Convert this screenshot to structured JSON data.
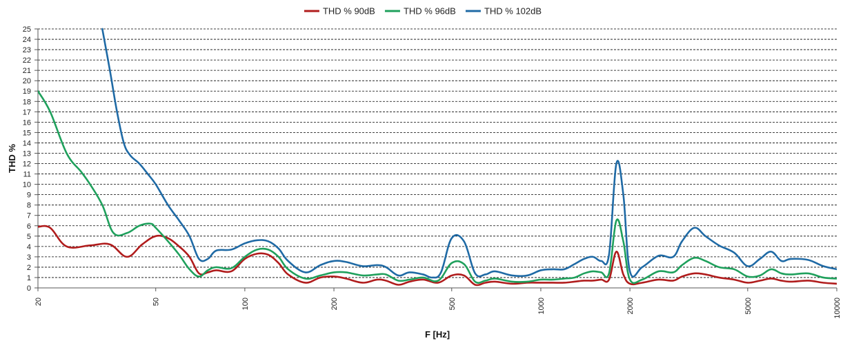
{
  "chart_data": {
    "type": "line",
    "title": "",
    "xlabel": "F [Hz]",
    "ylabel": "THD %",
    "x_scale": "log",
    "xlim": [
      20,
      10000
    ],
    "ylim": [
      0,
      25
    ],
    "x_ticks": [
      20,
      50,
      100,
      200,
      500,
      1000,
      2000,
      5000,
      10000
    ],
    "y_ticks": [
      0,
      1,
      2,
      3,
      4,
      5,
      6,
      7,
      8,
      9,
      10,
      11,
      12,
      13,
      14,
      15,
      16,
      17,
      18,
      19,
      20,
      21,
      22,
      23,
      24,
      25
    ],
    "grid": "horizontal dashed",
    "legend_position": "top-center",
    "series": [
      {
        "name": "THD % 90dB",
        "color": "#b01c1c",
        "x": [
          20,
          22,
          25,
          30,
          35,
          40,
          45,
          50,
          55,
          60,
          65,
          70,
          75,
          80,
          90,
          100,
          110,
          120,
          130,
          140,
          160,
          180,
          200,
          220,
          250,
          280,
          300,
          330,
          360,
          400,
          450,
          500,
          550,
          600,
          650,
          700,
          800,
          900,
          1000,
          1100,
          1200,
          1300,
          1400,
          1500,
          1600,
          1700,
          1800,
          1900,
          2000,
          2200,
          2500,
          2800,
          3000,
          3300,
          3600,
          4000,
          4500,
          5000,
          5500,
          6000,
          6500,
          7000,
          8000,
          9000,
          10000
        ],
        "y": [
          5.9,
          5.8,
          4.0,
          4.1,
          4.2,
          3.0,
          4.2,
          5.0,
          4.8,
          4.0,
          3.0,
          1.4,
          1.5,
          1.7,
          1.6,
          2.8,
          3.3,
          3.2,
          2.4,
          1.3,
          0.5,
          1.0,
          1.1,
          0.9,
          0.5,
          0.8,
          0.7,
          0.3,
          0.6,
          0.8,
          0.5,
          1.2,
          1.2,
          0.3,
          0.5,
          0.6,
          0.4,
          0.5,
          0.5,
          0.5,
          0.5,
          0.6,
          0.7,
          0.7,
          0.8,
          0.8,
          3.5,
          1.3,
          0.4,
          0.5,
          0.8,
          0.7,
          1.1,
          1.4,
          1.3,
          1.0,
          0.8,
          0.5,
          0.7,
          0.9,
          0.7,
          0.6,
          0.7,
          0.5,
          0.4
        ]
      },
      {
        "name": "THD % 96dB",
        "color": "#1fa05c",
        "x": [
          20,
          22,
          25,
          28,
          30,
          33,
          36,
          40,
          44,
          48,
          50,
          55,
          60,
          65,
          70,
          75,
          80,
          90,
          100,
          110,
          120,
          130,
          140,
          160,
          180,
          200,
          220,
          250,
          280,
          300,
          330,
          360,
          400,
          450,
          500,
          550,
          600,
          650,
          700,
          800,
          900,
          1000,
          1100,
          1200,
          1300,
          1400,
          1500,
          1600,
          1700,
          1800,
          1900,
          2000,
          2200,
          2500,
          2800,
          3000,
          3300,
          3600,
          4000,
          4500,
          5000,
          5500,
          6000,
          6500,
          7000,
          8000,
          9000,
          10000
        ],
        "y": [
          19.0,
          17.0,
          13.0,
          11.2,
          10.0,
          8.0,
          5.3,
          5.3,
          6.0,
          6.2,
          5.8,
          4.5,
          3.2,
          1.8,
          1.1,
          1.7,
          2.0,
          1.9,
          3.0,
          3.7,
          3.7,
          3.0,
          1.8,
          0.9,
          1.2,
          1.5,
          1.5,
          1.2,
          1.3,
          1.3,
          0.7,
          0.8,
          1.0,
          0.7,
          2.4,
          2.3,
          0.6,
          0.7,
          0.9,
          0.6,
          0.6,
          0.8,
          0.8,
          0.9,
          1.0,
          1.4,
          1.6,
          1.5,
          1.4,
          6.5,
          4.5,
          0.8,
          0.8,
          1.6,
          1.5,
          2.2,
          2.9,
          2.6,
          2.0,
          1.8,
          1.1,
          1.2,
          1.8,
          1.4,
          1.3,
          1.4,
          1.0,
          0.9
        ]
      },
      {
        "name": "THD % 102dB",
        "color": "#1f6aa5",
        "x": [
          33,
          35,
          37,
          39,
          41,
          44,
          47,
          50,
          55,
          60,
          65,
          70,
          75,
          80,
          90,
          100,
          110,
          120,
          130,
          140,
          160,
          180,
          200,
          220,
          250,
          280,
          300,
          330,
          360,
          400,
          430,
          460,
          500,
          550,
          600,
          650,
          700,
          800,
          900,
          1000,
          1100,
          1200,
          1300,
          1400,
          1500,
          1600,
          1700,
          1800,
          1900,
          2000,
          2200,
          2500,
          2800,
          3000,
          3300,
          3600,
          4000,
          4500,
          5000,
          5500,
          6000,
          6500,
          7000,
          8000,
          9000,
          10000
        ],
        "y": [
          25.0,
          21.0,
          17.0,
          14.0,
          12.8,
          12.0,
          11.0,
          10.0,
          8.0,
          6.5,
          5.0,
          2.8,
          2.8,
          3.6,
          3.7,
          4.3,
          4.6,
          4.5,
          3.8,
          2.6,
          1.5,
          2.2,
          2.6,
          2.5,
          2.1,
          2.2,
          2.0,
          1.2,
          1.5,
          1.3,
          1.0,
          1.5,
          4.8,
          4.5,
          1.4,
          1.3,
          1.6,
          1.2,
          1.2,
          1.7,
          1.8,
          1.8,
          2.3,
          2.8,
          3.0,
          2.6,
          3.2,
          12.0,
          9.0,
          1.6,
          2.0,
          3.1,
          3.0,
          4.5,
          5.8,
          5.0,
          4.1,
          3.4,
          2.1,
          2.8,
          3.5,
          2.6,
          2.8,
          2.7,
          2.1,
          1.8
        ]
      }
    ]
  }
}
